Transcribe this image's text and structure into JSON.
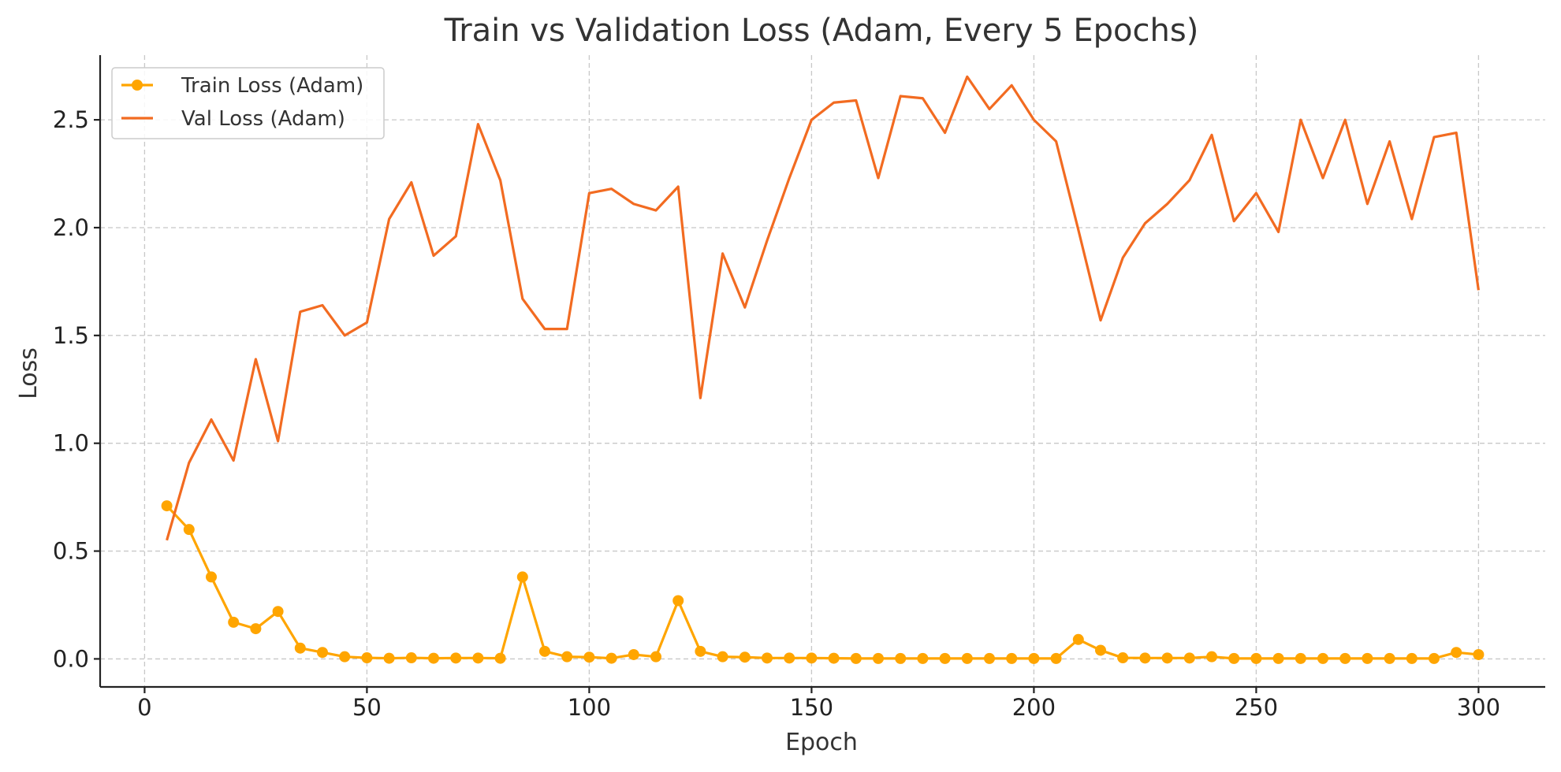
{
  "chart_data": {
    "type": "line",
    "title": "Train vs Validation Loss (Adam, Every 5 Epochs)",
    "xlabel": "Epoch",
    "ylabel": "Loss",
    "xlim": [
      -10,
      315
    ],
    "ylim": [
      -0.13,
      2.8
    ],
    "xticks": [
      0,
      50,
      100,
      150,
      200,
      250,
      300
    ],
    "yticks": [
      0.0,
      0.5,
      1.0,
      1.5,
      2.0,
      2.5
    ],
    "grid": true,
    "legend_position": "top-left",
    "x": [
      5,
      10,
      15,
      20,
      25,
      30,
      35,
      40,
      45,
      50,
      55,
      60,
      65,
      70,
      75,
      80,
      85,
      90,
      95,
      100,
      105,
      110,
      115,
      120,
      125,
      130,
      135,
      140,
      145,
      150,
      155,
      160,
      165,
      170,
      175,
      180,
      185,
      190,
      195,
      200,
      205,
      210,
      215,
      220,
      225,
      230,
      235,
      240,
      245,
      250,
      255,
      260,
      265,
      270,
      275,
      280,
      285,
      290,
      295,
      300
    ],
    "series": [
      {
        "name": "Train Loss (Adam)",
        "color": "#FFA500",
        "marker": "circle",
        "values": [
          0.71,
          0.6,
          0.38,
          0.17,
          0.14,
          0.22,
          0.05,
          0.03,
          0.01,
          0.005,
          0.003,
          0.005,
          0.003,
          0.004,
          0.004,
          0.003,
          0.38,
          0.035,
          0.01,
          0.008,
          0.003,
          0.02,
          0.01,
          0.27,
          0.035,
          0.01,
          0.008,
          0.004,
          0.004,
          0.004,
          0.003,
          0.002,
          0.002,
          0.002,
          0.002,
          0.002,
          0.002,
          0.002,
          0.002,
          0.002,
          0.002,
          0.09,
          0.04,
          0.005,
          0.004,
          0.004,
          0.004,
          0.01,
          0.002,
          0.002,
          0.002,
          0.002,
          0.002,
          0.002,
          0.002,
          0.002,
          0.002,
          0.002,
          0.03,
          0.02
        ]
      },
      {
        "name": "Val Loss (Adam)",
        "color": "#F26B21",
        "marker": "none",
        "values": [
          0.55,
          0.91,
          1.11,
          0.92,
          1.39,
          1.01,
          1.61,
          1.64,
          1.5,
          1.56,
          2.04,
          2.21,
          1.87,
          1.96,
          2.48,
          2.22,
          1.67,
          1.53,
          1.53,
          2.16,
          2.18,
          2.11,
          2.08,
          2.19,
          1.21,
          1.88,
          1.63,
          1.94,
          2.23,
          2.5,
          2.58,
          2.59,
          2.23,
          2.61,
          2.6,
          2.44,
          2.7,
          2.55,
          2.66,
          2.5,
          2.4,
          1.99,
          1.57,
          1.86,
          2.02,
          2.11,
          2.22,
          2.43,
          2.03,
          2.16,
          1.98,
          2.5,
          2.23,
          2.5,
          2.11,
          2.4,
          2.04,
          2.42,
          2.44,
          1.71
        ]
      }
    ]
  }
}
